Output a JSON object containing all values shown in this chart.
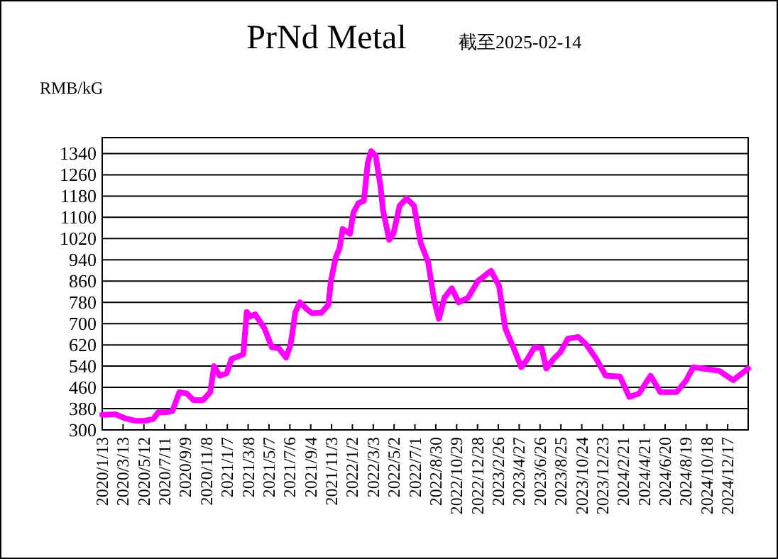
{
  "chart_data": {
    "type": "line",
    "title": "PrNd Metal",
    "subtitle": "截至2025-02-14",
    "ylabel": "RMB/kG",
    "x": [
      "2020-01-13",
      "2020-02-20",
      "2020-03-18",
      "2020-04-15",
      "2020-05-12",
      "2020-06-08",
      "2020-06-22",
      "2020-07-19",
      "2020-08-02",
      "2020-08-22",
      "2020-09-12",
      "2020-10-02",
      "2020-10-29",
      "2020-11-19",
      "2020-11-30",
      "2020-12-16",
      "2021-01-05",
      "2021-01-19",
      "2021-02-22",
      "2021-03-04",
      "2021-03-14",
      "2021-03-28",
      "2021-04-24",
      "2021-05-15",
      "2021-06-04",
      "2021-06-25",
      "2021-07-08",
      "2021-07-22",
      "2021-08-04",
      "2021-08-25",
      "2021-09-08",
      "2021-10-05",
      "2021-10-25",
      "2021-11-01",
      "2021-11-15",
      "2021-11-26",
      "2021-12-05",
      "2021-12-26",
      "2022-01-05",
      "2022-01-19",
      "2022-02-04",
      "2022-02-15",
      "2022-02-25",
      "2022-03-10",
      "2022-03-24",
      "2022-03-31",
      "2022-04-18",
      "2022-04-30",
      "2022-05-18",
      "2022-06-07",
      "2022-06-28",
      "2022-07-18",
      "2022-08-08",
      "2022-08-25",
      "2022-09-08",
      "2022-09-24",
      "2022-10-15",
      "2022-11-04",
      "2022-12-01",
      "2022-12-29",
      "2023-02-05",
      "2023-02-28",
      "2023-03-18",
      "2023-04-10",
      "2023-05-03",
      "2023-05-21",
      "2023-06-10",
      "2023-07-01",
      "2023-07-14",
      "2023-08-04",
      "2023-08-24",
      "2023-09-14",
      "2023-10-14",
      "2023-11-07",
      "2023-12-05",
      "2024-01-01",
      "2024-02-11",
      "2024-03-09",
      "2024-04-06",
      "2024-05-09",
      "2024-06-06",
      "2024-07-23",
      "2024-08-20",
      "2024-09-09",
      "2024-10-06",
      "2024-11-23",
      "2025-01-02",
      "2025-02-14"
    ],
    "series": [
      {
        "color": "#ff00ff",
        "values": [
          357,
          359,
          344,
          335,
          334,
          341,
          366,
          367,
          371,
          442,
          437,
          412,
          412,
          442,
          540,
          504,
          513,
          567,
          584,
          744,
          727,
          735,
          682,
          611,
          607,
          572,
          620,
          744,
          780,
          753,
          739,
          741,
          771,
          860,
          949,
          984,
          1056,
          1038,
          1118,
          1153,
          1162,
          1304,
          1349,
          1331,
          1216,
          1127,
          1016,
          1038,
          1144,
          1171,
          1144,
          1002,
          931,
          789,
          718,
          798,
          833,
          780,
          798,
          860,
          899,
          842,
          682,
          611,
          536,
          567,
          611,
          607,
          531,
          567,
          593,
          643,
          650,
          620,
          567,
          504,
          501,
          424,
          437,
          504,
          442,
          442,
          487,
          536,
          531,
          522,
          487,
          531
        ]
      }
    ],
    "xlim": [
      "2020-01-13",
      "2025-02-14"
    ],
    "ylim": [
      300,
      1400
    ],
    "xticks": [
      {
        "value": "2020-01-13",
        "label": "2020/1/13"
      },
      {
        "value": "2020-03-13",
        "label": "2020/3/13"
      },
      {
        "value": "2020-05-12",
        "label": "2020/5/12"
      },
      {
        "value": "2020-07-11",
        "label": "2020/7/11"
      },
      {
        "value": "2020-09-09",
        "label": "2020/9/9"
      },
      {
        "value": "2020-11-08",
        "label": "2020/11/8"
      },
      {
        "value": "2021-01-07",
        "label": "2021/1/7"
      },
      {
        "value": "2021-03-08",
        "label": "2021/3/8"
      },
      {
        "value": "2021-05-07",
        "label": "2021/5/7"
      },
      {
        "value": "2021-07-06",
        "label": "2021/7/6"
      },
      {
        "value": "2021-09-04",
        "label": "2021/9/4"
      },
      {
        "value": "2021-11-03",
        "label": "2021/11/3"
      },
      {
        "value": "2022-01-02",
        "label": "2022/1/2"
      },
      {
        "value": "2022-03-03",
        "label": "2022/3/3"
      },
      {
        "value": "2022-05-02",
        "label": "2022/5/2"
      },
      {
        "value": "2022-07-01",
        "label": "2022/7/1"
      },
      {
        "value": "2022-08-30",
        "label": "2022/8/30"
      },
      {
        "value": "2022-10-29",
        "label": "2022/10/29"
      },
      {
        "value": "2022-12-28",
        "label": "2022/12/28"
      },
      {
        "value": "2023-02-26",
        "label": "2023/2/26"
      },
      {
        "value": "2023-04-27",
        "label": "2023/4/27"
      },
      {
        "value": "2023-06-26",
        "label": "2023/6/26"
      },
      {
        "value": "2023-08-25",
        "label": "2023/8/25"
      },
      {
        "value": "2023-10-24",
        "label": "2023/10/24"
      },
      {
        "value": "2023-12-23",
        "label": "2023/12/23"
      },
      {
        "value": "2024-02-21",
        "label": "2024/2/21"
      },
      {
        "value": "2024-04-21",
        "label": "2024/4/21"
      },
      {
        "value": "2024-06-20",
        "label": "2024/6/20"
      },
      {
        "value": "2024-08-19",
        "label": "2024/8/19"
      },
      {
        "value": "2024-10-18",
        "label": "2024/10/18"
      },
      {
        "value": "2024-12-17",
        "label": "2024/12/17"
      }
    ],
    "yticks": [
      300,
      380,
      460,
      540,
      620,
      700,
      780,
      860,
      940,
      1020,
      1100,
      1180,
      1260,
      1340
    ],
    "grid": "y"
  }
}
